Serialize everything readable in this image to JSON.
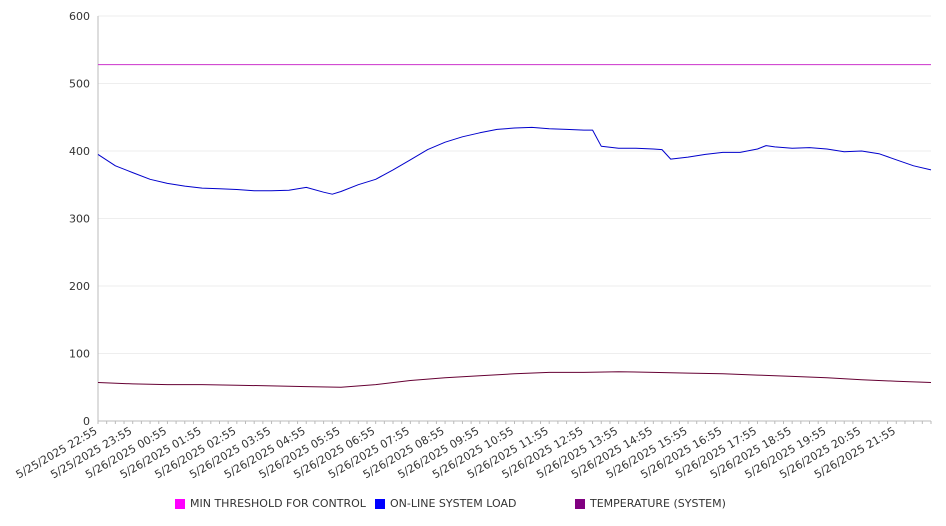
{
  "chart_data": {
    "type": "line",
    "title": "",
    "xlabel": "",
    "ylabel": "",
    "ylim": [
      0,
      600
    ],
    "yticks": [
      "0",
      "100",
      "200",
      "300",
      "400",
      "500",
      "600"
    ],
    "grid": true,
    "legend_position": "bottom",
    "x_tick_labels": [
      "5/25/2025 22:55",
      "5/25/2025 23:55",
      "5/26/2025 00:55",
      "5/26/2025 01:55",
      "5/26/2025 02:55",
      "5/26/2025 03:55",
      "5/26/2025 04:55",
      "5/26/2025 05:55",
      "5/26/2025 06:55",
      "5/26/2025 07:55",
      "5/26/2025 08:55",
      "5/26/2025 09:55",
      "5/26/2025 10:55",
      "5/26/2025 11:55",
      "5/26/2025 12:55",
      "5/26/2025 13:55",
      "5/26/2025 14:55",
      "5/26/2025 15:55",
      "5/26/2025 16:55",
      "5/26/2025 17:55",
      "5/26/2025 18:55",
      "5/26/2025 19:55",
      "5/26/2025 20:55",
      "5/26/2025 21:55"
    ],
    "x_range": [
      "5/25/2025 22:55",
      "5/26/2025 22:55"
    ],
    "series": [
      {
        "name": "MIN THRESHOLD FOR CONTROL",
        "color": "#cc33cc",
        "legend_color": "#ff00ff",
        "points": [
          [
            "5/25/2025 22:55",
            528
          ],
          [
            "5/26/2025 22:55",
            528
          ]
        ]
      },
      {
        "name": "ON-LINE SYSTEM LOAD",
        "color": "#0000cc",
        "legend_color": "#0000ff",
        "points": [
          [
            "5/25/2025 22:55",
            395
          ],
          [
            "5/25/2025 23:25",
            378
          ],
          [
            "5/25/2025 23:55",
            368
          ],
          [
            "5/26/2025 00:25",
            358
          ],
          [
            "5/26/2025 00:55",
            352
          ],
          [
            "5/26/2025 01:25",
            348
          ],
          [
            "5/26/2025 01:55",
            345
          ],
          [
            "5/26/2025 02:25",
            344
          ],
          [
            "5/26/2025 02:55",
            343
          ],
          [
            "5/26/2025 03:25",
            341
          ],
          [
            "5/26/2025 03:55",
            341
          ],
          [
            "5/26/2025 04:25",
            342
          ],
          [
            "5/26/2025 04:55",
            346
          ],
          [
            "5/26/2025 05:25",
            339
          ],
          [
            "5/26/2025 05:40",
            336
          ],
          [
            "5/26/2025 05:55",
            340
          ],
          [
            "5/26/2025 06:25",
            350
          ],
          [
            "5/26/2025 06:55",
            358
          ],
          [
            "5/26/2025 07:25",
            372
          ],
          [
            "5/26/2025 07:55",
            387
          ],
          [
            "5/26/2025 08:25",
            402
          ],
          [
            "5/26/2025 08:55",
            413
          ],
          [
            "5/26/2025 09:25",
            421
          ],
          [
            "5/26/2025 09:55",
            427
          ],
          [
            "5/26/2025 10:25",
            432
          ],
          [
            "5/26/2025 10:55",
            434
          ],
          [
            "5/26/2025 11:25",
            435
          ],
          [
            "5/26/2025 11:55",
            433
          ],
          [
            "5/26/2025 12:25",
            432
          ],
          [
            "5/26/2025 12:55",
            431
          ],
          [
            "5/26/2025 13:10",
            431
          ],
          [
            "5/26/2025 13:25",
            407
          ],
          [
            "5/26/2025 13:55",
            404
          ],
          [
            "5/26/2025 14:25",
            404
          ],
          [
            "5/26/2025 14:55",
            403
          ],
          [
            "5/26/2025 15:10",
            402
          ],
          [
            "5/26/2025 15:25",
            388
          ],
          [
            "5/26/2025 15:55",
            391
          ],
          [
            "5/26/2025 16:25",
            395
          ],
          [
            "5/26/2025 16:55",
            398
          ],
          [
            "5/26/2025 17:25",
            398
          ],
          [
            "5/26/2025 17:55",
            403
          ],
          [
            "5/26/2025 18:10",
            408
          ],
          [
            "5/26/2025 18:25",
            406
          ],
          [
            "5/26/2025 18:55",
            404
          ],
          [
            "5/26/2025 19:25",
            405
          ],
          [
            "5/26/2025 19:55",
            403
          ],
          [
            "5/26/2025 20:25",
            399
          ],
          [
            "5/26/2025 20:55",
            400
          ],
          [
            "5/26/2025 21:25",
            396
          ],
          [
            "5/26/2025 21:55",
            387
          ],
          [
            "5/26/2025 22:25",
            378
          ],
          [
            "5/26/2025 22:55",
            372
          ]
        ]
      },
      {
        "name": "TEMPERATURE (SYSTEM)",
        "color": "#660033",
        "legend_color": "#800080",
        "points": [
          [
            "5/25/2025 22:55",
            57
          ],
          [
            "5/25/2025 23:55",
            55
          ],
          [
            "5/26/2025 00:55",
            54
          ],
          [
            "5/26/2025 01:55",
            54
          ],
          [
            "5/26/2025 02:55",
            53
          ],
          [
            "5/26/2025 03:55",
            52
          ],
          [
            "5/26/2025 04:55",
            51
          ],
          [
            "5/26/2025 05:55",
            50
          ],
          [
            "5/26/2025 06:55",
            54
          ],
          [
            "5/26/2025 07:55",
            60
          ],
          [
            "5/26/2025 08:55",
            64
          ],
          [
            "5/26/2025 09:55",
            67
          ],
          [
            "5/26/2025 10:55",
            70
          ],
          [
            "5/26/2025 11:55",
            72
          ],
          [
            "5/26/2025 12:55",
            72
          ],
          [
            "5/26/2025 13:55",
            73
          ],
          [
            "5/26/2025 14:55",
            72
          ],
          [
            "5/26/2025 15:55",
            71
          ],
          [
            "5/26/2025 16:55",
            70
          ],
          [
            "5/26/2025 17:55",
            68
          ],
          [
            "5/26/2025 18:55",
            66
          ],
          [
            "5/26/2025 19:55",
            64
          ],
          [
            "5/26/2025 20:55",
            61
          ],
          [
            "5/26/2025 21:55",
            59
          ],
          [
            "5/26/2025 22:55",
            57
          ]
        ]
      }
    ]
  },
  "colors": {
    "axis": "#bbbbbb",
    "grid": "#eeeeee",
    "text": "#333333"
  }
}
